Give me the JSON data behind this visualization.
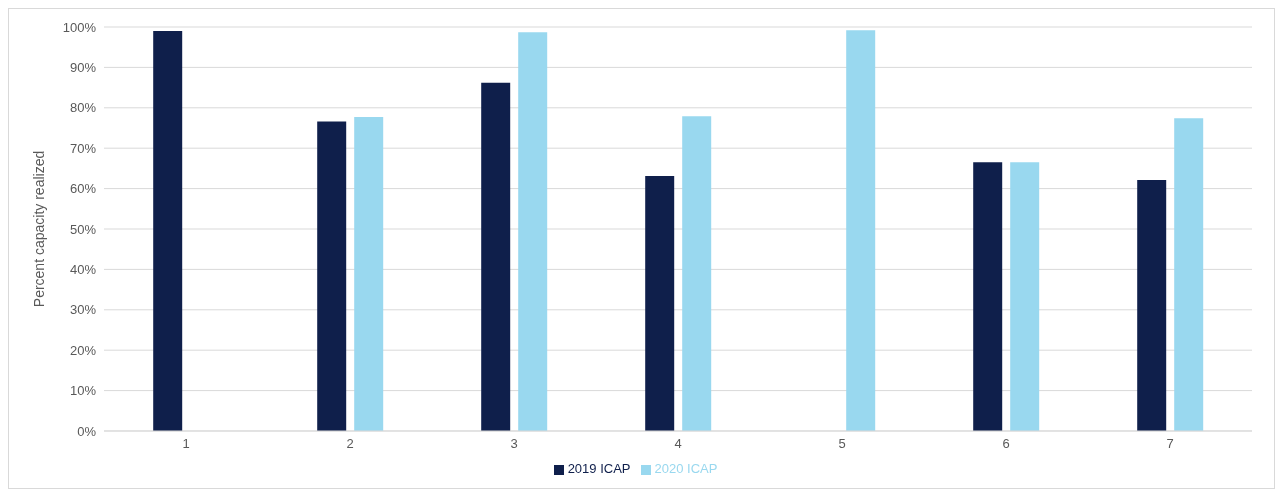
{
  "chart_data": {
    "type": "bar",
    "ylabel": "Percent capacity realized",
    "categories": [
      "1",
      "2",
      "3",
      "4",
      "5",
      "6",
      "7"
    ],
    "series": [
      {
        "name": "2019 ICAP",
        "color": "#0f1f4b",
        "values": [
          99,
          76.6,
          86.2,
          63.1,
          null,
          66.5,
          62.1
        ]
      },
      {
        "name": "2020 ICAP",
        "color": "#99d8ef",
        "values": [
          null,
          77.7,
          98.7,
          77.9,
          99.2,
          66.5,
          77.4
        ]
      }
    ],
    "ylim": [
      0,
      100
    ],
    "yticks": [
      {
        "value": 0,
        "label": "0%"
      },
      {
        "value": 10,
        "label": "10%"
      },
      {
        "value": 20,
        "label": "20%"
      },
      {
        "value": 30,
        "label": "30%"
      },
      {
        "value": 40,
        "label": "40%"
      },
      {
        "value": 50,
        "label": "50%"
      },
      {
        "value": 60,
        "label": "60%"
      },
      {
        "value": 70,
        "label": "70%"
      },
      {
        "value": 80,
        "label": "80%"
      },
      {
        "value": 90,
        "label": "90%"
      },
      {
        "value": 100,
        "label": "100%"
      }
    ],
    "grid": "y",
    "legend": "bottom"
  }
}
